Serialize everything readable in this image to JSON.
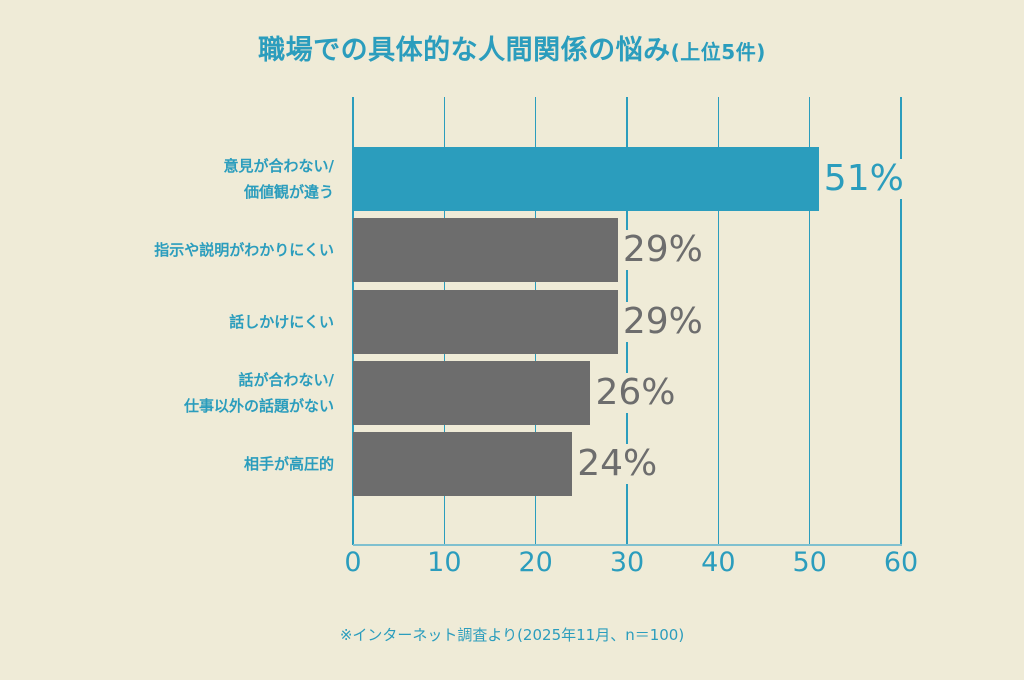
{
  "title": {
    "main": "職場での具体的な人間関係の悩み",
    "sub": "(上位5件)"
  },
  "footnote": "※インターネット調査より(2025年11月、n＝100)",
  "colors": {
    "background": "#efebd7",
    "accent": "#2b9dbd",
    "bar_highlight": "#2b9dbd",
    "bar_default": "#6d6d6d",
    "value_highlight": "#2b9dbd",
    "value_default": "#6d6d6d"
  },
  "chart_data": {
    "type": "bar",
    "orientation": "horizontal",
    "title": "職場での具体的な人間関係の悩み(上位5件)",
    "categories": [
      "意見が合わない/\n価値観が違う",
      "指示や説明がわかりにくい",
      "話しかけにくい",
      "話が合わない/\n仕事以外の話題がない",
      "相手が高圧的"
    ],
    "values": [
      51,
      29,
      29,
      26,
      24
    ],
    "value_labels": [
      "51%",
      "29%",
      "29%",
      "26%",
      "24%"
    ],
    "highlight_index": 0,
    "xlabel": "",
    "ylabel": "",
    "xlim": [
      0,
      60
    ],
    "xticks": [
      0,
      10,
      20,
      30,
      40,
      50,
      60
    ],
    "xtick_labels": [
      "0",
      "10",
      "20",
      "30",
      "40",
      "50",
      "60"
    ],
    "grid": true,
    "legend": null
  }
}
